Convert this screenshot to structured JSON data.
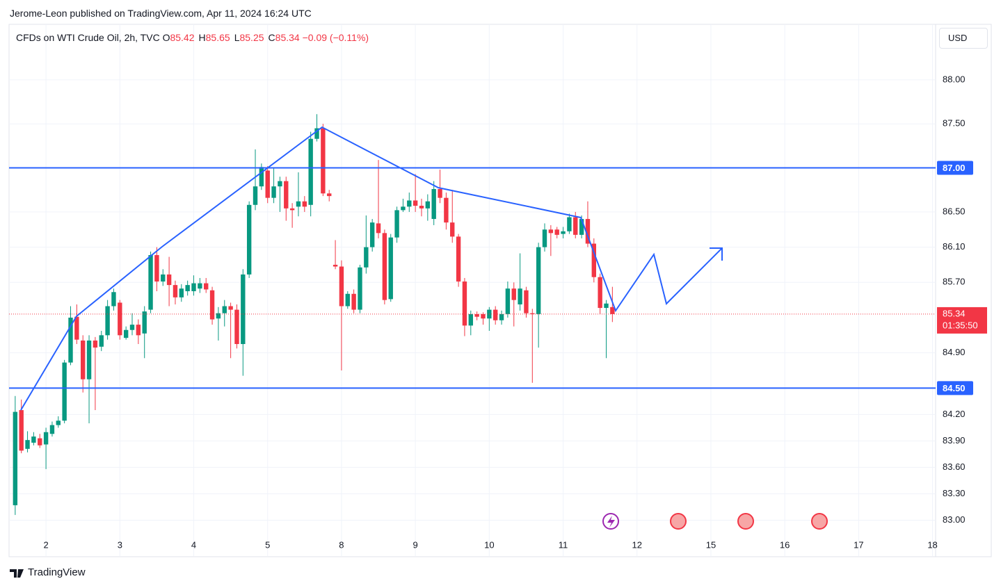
{
  "header": "Jerome-Leon published on TradingView.com, Apr 11, 2024 16:24 UTC",
  "currency": "USD",
  "brand": "TradingView",
  "chart_data": {
    "type": "candlestick",
    "title": "CFDs on WTI Crude Oil, 2h, TVC",
    "ohlc_legend": [
      {
        "key": "O",
        "value": "85.42"
      },
      {
        "key": "H",
        "value": "85.65"
      },
      {
        "key": "L",
        "value": "85.25"
      },
      {
        "key": "C",
        "value": "85.34"
      }
    ],
    "change": "−0.09 (−0.11%)",
    "open": [
      83.17,
      84.25,
      83.81,
      83.88,
      83.93,
      83.86,
      83.98,
      84.08,
      84.13,
      84.79,
      85.31,
      85.04,
      84.6,
      85.04,
      84.97,
      85.1,
      85.43,
      85.47,
      85.07,
      85.16,
      85.22,
      85.12,
      85.39,
      86.01,
      85.71,
      85.79,
      85.67,
      85.53,
      85.6,
      85.6,
      85.63,
      85.69,
      85.61,
      85.29,
      85.35,
      85.43,
      85.39,
      85.0,
      85.79,
      86.58,
      86.79,
      86.97,
      86.66,
      86.79,
      86.85,
      86.54,
      86.56,
      86.62,
      86.58,
      87.33,
      87.45,
      86.71,
      85.9,
      85.88,
      85.43,
      85.57,
      85.39,
      85.87,
      86.1,
      86.37,
      86.26,
      85.51,
      86.21,
      86.52,
      86.56,
      86.63,
      86.57,
      86.54,
      86.42,
      86.76,
      86.66,
      86.38,
      86.22,
      85.71,
      85.21,
      85.34,
      85.34,
      85.29,
      85.39,
      85.27,
      85.34,
      85.63,
      85.45,
      85.61,
      85.35,
      85.34,
      86.1,
      86.3,
      86.3,
      86.25,
      86.28,
      86.44,
      86.24,
      86.42,
      86.14,
      85.76,
      85.41,
      85.42
    ],
    "high": [
      84.41,
      84.37,
      84.01,
      84.0,
      83.98,
      84.05,
      84.12,
      84.18,
      84.82,
      85.43,
      85.45,
      85.1,
      85.1,
      85.08,
      85.15,
      85.5,
      85.63,
      85.5,
      85.2,
      85.35,
      85.28,
      85.43,
      86.05,
      86.1,
      85.85,
      85.99,
      85.72,
      85.68,
      85.72,
      85.78,
      85.75,
      85.75,
      85.65,
      85.42,
      85.5,
      85.47,
      85.45,
      85.85,
      86.62,
      87.21,
      87.05,
      87.02,
      87.0,
      86.9,
      86.9,
      86.6,
      86.95,
      86.68,
      87.41,
      87.61,
      87.5,
      86.75,
      86.18,
      85.95,
      85.6,
      85.62,
      85.9,
      86.46,
      86.42,
      87.09,
      86.3,
      86.25,
      86.56,
      86.65,
      86.72,
      86.93,
      86.65,
      86.7,
      86.85,
      86.98,
      86.72,
      86.75,
      86.25,
      85.75,
      85.38,
      85.37,
      85.36,
      85.42,
      85.43,
      85.38,
      85.71,
      85.7,
      86.03,
      85.65,
      85.4,
      86.15,
      86.37,
      86.35,
      86.33,
      86.33,
      86.48,
      86.5,
      86.46,
      86.62,
      86.2,
      85.8,
      85.5,
      85.65
    ],
    "low": [
      83.06,
      83.76,
      83.77,
      83.85,
      83.82,
      83.58,
      83.95,
      84.05,
      84.1,
      84.76,
      85.0,
      84.45,
      84.1,
      84.25,
      84.92,
      85.05,
      85.38,
      85.05,
      85.05,
      85.1,
      85.0,
      84.84,
      85.35,
      85.6,
      85.66,
      85.43,
      85.45,
      85.48,
      85.55,
      85.55,
      85.58,
      85.58,
      85.22,
      85.04,
      85.2,
      84.84,
      84.95,
      84.64,
      85.75,
      86.52,
      86.75,
      86.6,
      86.6,
      86.5,
      86.4,
      86.32,
      86.45,
      86.5,
      86.45,
      87.3,
      86.68,
      86.62,
      85.85,
      84.7,
      85.4,
      85.35,
      85.35,
      85.8,
      86.05,
      86.2,
      85.45,
      85.48,
      86.15,
      86.5,
      86.5,
      86.5,
      86.45,
      86.4,
      86.35,
      86.6,
      86.3,
      86.15,
      85.65,
      85.09,
      85.1,
      85.27,
      85.22,
      85.15,
      85.22,
      85.22,
      85.3,
      85.2,
      85.38,
      85.3,
      84.56,
      84.96,
      86.05,
      86.0,
      86.2,
      86.2,
      86.25,
      86.2,
      86.2,
      86.1,
      85.7,
      85.34,
      84.84,
      85.25
    ],
    "close": [
      84.23,
      83.79,
      83.91,
      83.95,
      83.85,
      84.0,
      84.08,
      84.13,
      84.79,
      85.3,
      85.05,
      84.6,
      85.04,
      84.96,
      85.1,
      85.43,
      85.59,
      85.1,
      85.16,
      85.22,
      85.1,
      85.37,
      86.01,
      85.71,
      85.79,
      85.67,
      85.53,
      85.63,
      85.67,
      85.69,
      85.69,
      85.62,
      85.28,
      85.35,
      85.43,
      85.39,
      85.0,
      85.79,
      86.58,
      86.79,
      87.01,
      86.66,
      86.79,
      86.85,
      86.54,
      86.52,
      86.62,
      86.56,
      87.33,
      87.45,
      86.71,
      86.68,
      85.88,
      85.43,
      85.57,
      85.39,
      85.87,
      86.1,
      86.38,
      86.26,
      85.5,
      86.21,
      86.52,
      86.56,
      86.63,
      86.57,
      86.54,
      86.62,
      86.76,
      86.66,
      86.38,
      86.22,
      85.71,
      85.21,
      85.34,
      85.31,
      85.29,
      85.39,
      85.27,
      85.34,
      85.63,
      85.5,
      85.63,
      85.35,
      85.34,
      86.1,
      86.3,
      86.26,
      86.24,
      86.28,
      86.44,
      86.24,
      86.42,
      86.14,
      85.76,
      85.41,
      85.46,
      85.34
    ],
    "up_color": "#089981",
    "down_color": "#f23645",
    "xlim": [
      -1,
      149.5
    ],
    "xticks": [
      {
        "value": 5,
        "label": "2"
      },
      {
        "value": 17,
        "label": "3"
      },
      {
        "value": 29,
        "label": "4"
      },
      {
        "value": 41,
        "label": "5"
      },
      {
        "value": 53,
        "label": "8"
      },
      {
        "value": 65,
        "label": "9"
      },
      {
        "value": 77,
        "label": "10"
      },
      {
        "value": 89,
        "label": "11"
      },
      {
        "value": 101,
        "label": "12"
      },
      {
        "value": 113,
        "label": "15"
      },
      {
        "value": 125,
        "label": "16"
      },
      {
        "value": 137,
        "label": "17"
      },
      {
        "value": 149,
        "label": "18"
      }
    ],
    "ylim": [
      82.83,
      88.63
    ],
    "yticks": [
      {
        "value": 83,
        "label": "83.00"
      },
      {
        "value": 83.3,
        "label": "83.30"
      },
      {
        "value": 83.6,
        "label": "83.60"
      },
      {
        "value": 83.9,
        "label": "83.90"
      },
      {
        "value": 84.2,
        "label": "84.20"
      },
      {
        "value": 84.9,
        "label": "84.90"
      },
      {
        "value": 85.7,
        "label": "85.70"
      },
      {
        "value": 86.1,
        "label": "86.10"
      },
      {
        "value": 86.5,
        "label": "86.50"
      },
      {
        "value": 87.5,
        "label": "87.50"
      },
      {
        "value": 88,
        "label": "88.00"
      }
    ],
    "grid": true,
    "levels": [
      {
        "value": 87,
        "label": "87.00"
      },
      {
        "value": 84.5,
        "label": "84.50"
      }
    ],
    "level_color": "#2962ff",
    "last_price": 85.34,
    "countdown": "01:35:50"
  }
}
